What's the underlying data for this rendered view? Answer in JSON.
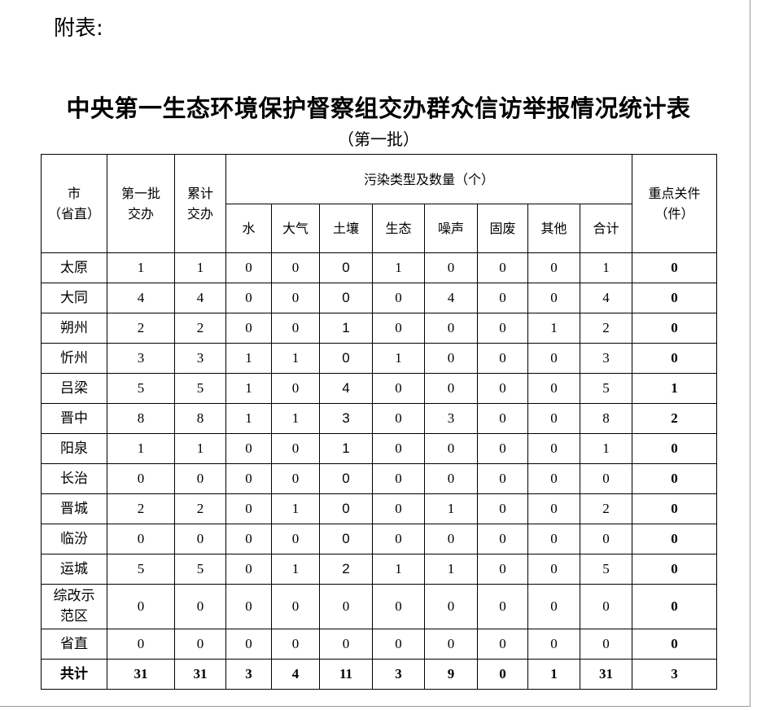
{
  "attachment_label": "附表:",
  "title": "中央第一生态环境保护督察组交办群众信访举报情况统计表",
  "subtitle": "（第一批）",
  "headers": {
    "city": "市\n（省直）",
    "first_batch": "第一批\n交办",
    "cumulative": "累计\n交办",
    "pollution_group": "污染类型及数量（个）",
    "pollution_types": [
      "水",
      "大气",
      "土壤",
      "生态",
      "噪声",
      "固废",
      "其他",
      "合计"
    ],
    "key_cases": "重点关件\n（件）"
  },
  "rows": [
    {
      "city": "太原",
      "values": [
        "1",
        "1",
        "0",
        "0",
        "0",
        "1",
        "0",
        "0",
        "0",
        "1",
        "0"
      ]
    },
    {
      "city": "大同",
      "values": [
        "4",
        "4",
        "0",
        "0",
        "0",
        "0",
        "4",
        "0",
        "0",
        "4",
        "0"
      ]
    },
    {
      "city": "朔州",
      "values": [
        "2",
        "2",
        "0",
        "0",
        "1",
        "0",
        "0",
        "0",
        "1",
        "2",
        "0"
      ]
    },
    {
      "city": "忻州",
      "values": [
        "3",
        "3",
        "1",
        "1",
        "0",
        "1",
        "0",
        "0",
        "0",
        "3",
        "0"
      ]
    },
    {
      "city": "吕梁",
      "values": [
        "5",
        "5",
        "1",
        "0",
        "4",
        "0",
        "0",
        "0",
        "0",
        "5",
        "1"
      ]
    },
    {
      "city": "晋中",
      "values": [
        "8",
        "8",
        "1",
        "1",
        "3",
        "0",
        "3",
        "0",
        "0",
        "8",
        "2"
      ]
    },
    {
      "city": "阳泉",
      "values": [
        "1",
        "1",
        "0",
        "0",
        "1",
        "0",
        "0",
        "0",
        "0",
        "1",
        "0"
      ]
    },
    {
      "city": "长治",
      "values": [
        "0",
        "0",
        "0",
        "0",
        "0",
        "0",
        "0",
        "0",
        "0",
        "0",
        "0"
      ]
    },
    {
      "city": "晋城",
      "values": [
        "2",
        "2",
        "0",
        "1",
        "0",
        "0",
        "1",
        "0",
        "0",
        "2",
        "0"
      ]
    },
    {
      "city": "临汾",
      "values": [
        "0",
        "0",
        "0",
        "0",
        "0",
        "0",
        "0",
        "0",
        "0",
        "0",
        "0"
      ]
    },
    {
      "city": "运城",
      "values": [
        "5",
        "5",
        "0",
        "1",
        "2",
        "1",
        "1",
        "0",
        "0",
        "5",
        "0"
      ]
    },
    {
      "city": "综改示\n范区",
      "values": [
        "0",
        "0",
        "0",
        "0",
        "0",
        "0",
        "0",
        "0",
        "0",
        "0",
        "0"
      ]
    },
    {
      "city": "省直",
      "values": [
        "0",
        "0",
        "0",
        "0",
        "0",
        "0",
        "0",
        "0",
        "0",
        "0",
        "0"
      ]
    }
  ],
  "total": {
    "city": "共计",
    "values": [
      "31",
      "31",
      "3",
      "4",
      "11",
      "3",
      "9",
      "0",
      "1",
      "31",
      "3"
    ]
  }
}
